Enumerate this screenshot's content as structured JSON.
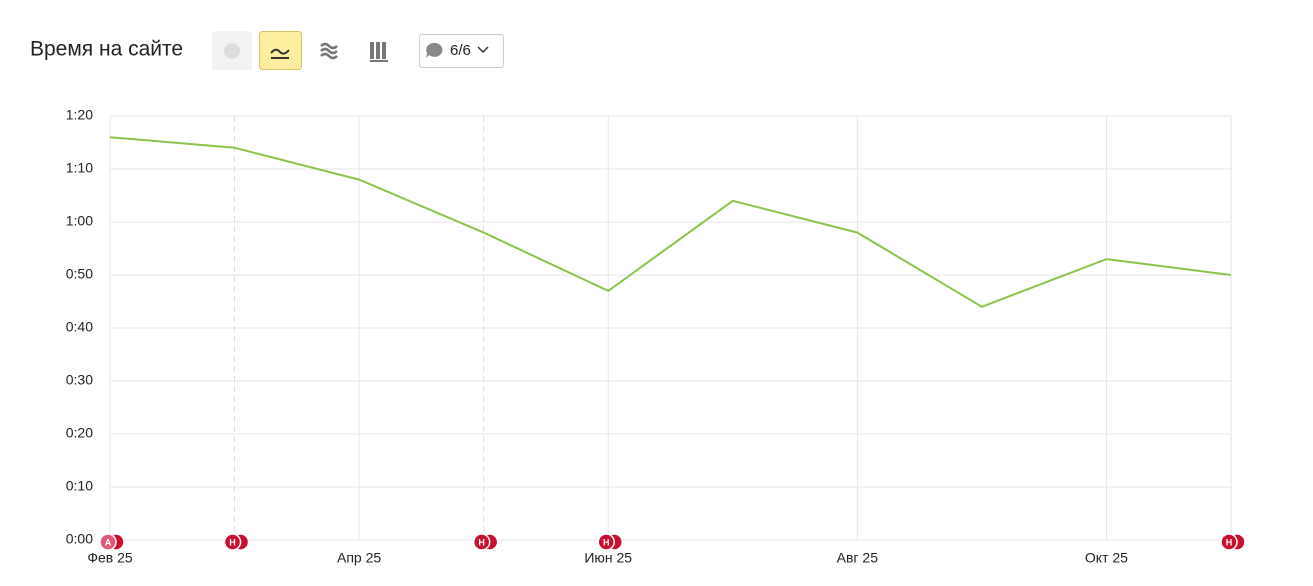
{
  "header": {
    "title": "Время на сайте",
    "comments_button": "6/6"
  },
  "chart_data": {
    "type": "line",
    "categories": [
      "Фев 25",
      null,
      "Апр 25",
      null,
      "Июн 25",
      null,
      "Авг 25",
      null,
      "Окт 25",
      null
    ],
    "values": [
      76,
      74,
      68,
      58,
      47,
      64,
      58,
      44,
      53,
      50
    ],
    "color": "#8bc34a",
    "ylim": [
      0,
      80
    ],
    "yticks": [
      {
        "value": 0,
        "label": "0:00"
      },
      {
        "value": 10,
        "label": "0:10"
      },
      {
        "value": 20,
        "label": "0:20"
      },
      {
        "value": 30,
        "label": "0:30"
      },
      {
        "value": 40,
        "label": "0:40"
      },
      {
        "value": 50,
        "label": "0:50"
      },
      {
        "value": 60,
        "label": "1:00"
      },
      {
        "value": 70,
        "label": "1:10"
      },
      {
        "value": 80,
        "label": "1:20"
      }
    ],
    "grid": true,
    "annotations": [
      {
        "category_index": 0,
        "label": "А",
        "color": "#e0577a"
      },
      {
        "category_index": 1,
        "label": "Н",
        "color": "#c8102e"
      },
      {
        "category_index": 3,
        "label": "Н",
        "color": "#c8102e"
      },
      {
        "category_index": 4,
        "label": "Н",
        "color": "#c8102e"
      },
      {
        "category_index": 9,
        "label": "Н",
        "color": "#c8102e"
      }
    ]
  }
}
